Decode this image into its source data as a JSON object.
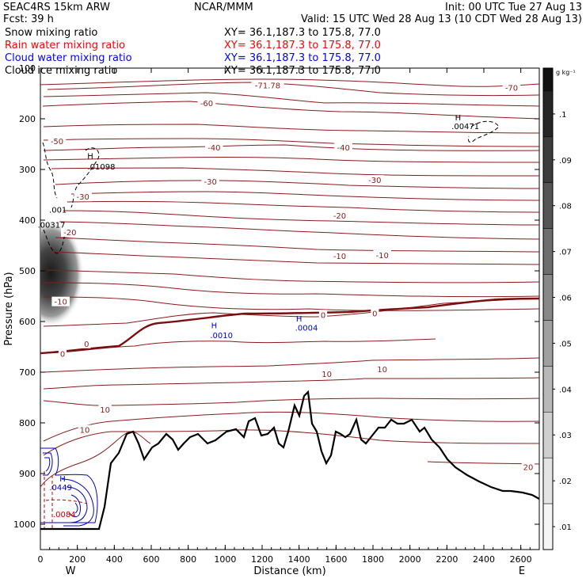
{
  "header": {
    "title_left": "SEAC4RS 15km ARW",
    "forecast": "Fcst:    39 h",
    "center": "NCAR/MMM",
    "init": "Init: 00 UTC Tue 27 Aug 13",
    "valid": "Valid: 15 UTC Wed 28 Aug 13 (10 CDT Wed 28 Aug 13)"
  },
  "fields": [
    {
      "label": "Snow mixing ratio",
      "xy": "XY=  36.1,187.3 to 175.8, 77.0",
      "color": "#000000"
    },
    {
      "label": "Rain water mixing ratio",
      "xy": "XY=  36.1,187.3 to 175.8, 77.0",
      "color": "#ff0000"
    },
    {
      "label": "Cloud water mixing ratio",
      "xy": "XY=  36.1,187.3 to 175.8, 77.0",
      "color": "#0000ff"
    },
    {
      "label": "Cloud ice mixing ratio",
      "xy": "XY=  36.1,187.3 to 175.8, 77.0",
      "color": "#000000"
    }
  ],
  "chart_data": {
    "type": "cross-section contour",
    "xlabel": "Distance (km)",
    "ylabel": "Pressure (hPa)",
    "xlim": [
      0,
      2700
    ],
    "ylim": [
      1050,
      100
    ],
    "xticks": [
      "0",
      "200",
      "400",
      "600",
      "800",
      "1000",
      "1200",
      "1400",
      "1600",
      "1800",
      "2000",
      "2200",
      "2400",
      "2600"
    ],
    "yticks": [
      "100",
      "200",
      "300",
      "400",
      "500",
      "600",
      "700",
      "800",
      "900",
      "1000"
    ],
    "end_labels": {
      "west": "W",
      "east": "E"
    },
    "colorbar": {
      "unit": "g kg⁻¹",
      "labels": [
        ".1",
        ".09",
        ".08",
        ".07",
        ".06",
        ".05",
        ".04",
        ".03",
        ".02",
        ".01"
      ],
      "colors": [
        "#262626",
        "#3d3d3d",
        "#555555",
        "#6e6e6e",
        "#888888",
        "#a0a0a0",
        "#b8b8b8",
        "#cfcfcf",
        "#e4e4e4",
        "#f5f5f5"
      ]
    },
    "isotherm_color": "#8b1a1a",
    "isotherm_labels": [
      {
        "text": "-71.78",
        "x": 1230,
        "p": 135
      },
      {
        "text": "-70",
        "x": 2550,
        "p": 140
      },
      {
        "text": "-60",
        "x": 900,
        "p": 170
      },
      {
        "text": "-50",
        "x": 90,
        "p": 245
      },
      {
        "text": "-40",
        "x": 940,
        "p": 258
      },
      {
        "text": "-40",
        "x": 1640,
        "p": 258
      },
      {
        "text": "-30",
        "x": 230,
        "p": 355
      },
      {
        "text": "-30",
        "x": 920,
        "p": 325
      },
      {
        "text": "-30",
        "x": 1810,
        "p": 322
      },
      {
        "text": "-20",
        "x": 160,
        "p": 425
      },
      {
        "text": "-20",
        "x": 1620,
        "p": 392
      },
      {
        "text": "-10",
        "x": 110,
        "p": 562
      },
      {
        "text": "-10",
        "x": 1620,
        "p": 472
      },
      {
        "text": "-10",
        "x": 1850,
        "p": 470
      },
      {
        "text": "0",
        "x": 120,
        "p": 665
      },
      {
        "text": "0",
        "x": 250,
        "p": 645
      },
      {
        "text": "0",
        "x": 1530,
        "p": 588
      },
      {
        "text": "0",
        "x": 1810,
        "p": 585
      },
      {
        "text": "10",
        "x": 1550,
        "p": 705
      },
      {
        "text": "10",
        "x": 1850,
        "p": 695
      },
      {
        "text": "10",
        "x": 350,
        "p": 775
      },
      {
        "text": "10",
        "x": 240,
        "p": 815
      },
      {
        "text": "20",
        "x": 2640,
        "p": 888
      }
    ],
    "annotations": [
      {
        "text": "H",
        "x": 270,
        "p": 279,
        "color": "#000000"
      },
      {
        "text": ".01098",
        "x": 330,
        "p": 300,
        "color": "#000000"
      },
      {
        "text": ".001",
        "x": 95,
        "p": 385,
        "color": "#000000"
      },
      {
        "text": ".00317",
        "x": 60,
        "p": 415,
        "color": "#000000"
      },
      {
        "text": "H",
        "x": 2260,
        "p": 203,
        "color": "#000000"
      },
      {
        "text": ".00471",
        "x": 2300,
        "p": 220,
        "color": "#000000"
      },
      {
        "text": "H",
        "x": 940,
        "p": 613,
        "color": "#0000cc"
      },
      {
        "text": ".0010",
        "x": 980,
        "p": 633,
        "color": "#0000cc"
      },
      {
        "text": "H",
        "x": 1400,
        "p": 600,
        "color": "#0000cc"
      },
      {
        "text": ".0004",
        "x": 1440,
        "p": 618,
        "color": "#0000cc"
      },
      {
        "text": "H",
        "x": 120,
        "p": 916,
        "color": "#0000cc"
      },
      {
        "text": ".0449",
        "x": 110,
        "p": 933,
        "color": "#0000cc"
      },
      {
        "text": ".0084",
        "x": 130,
        "p": 986,
        "color": "#cc0000"
      }
    ]
  }
}
